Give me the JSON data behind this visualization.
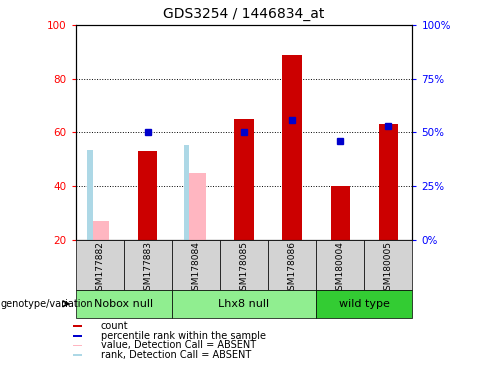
{
  "title": "GDS3254 / 1446834_at",
  "samples": [
    "GSM177882",
    "GSM177883",
    "GSM178084",
    "GSM178085",
    "GSM178086",
    "GSM180004",
    "GSM180005"
  ],
  "count": [
    null,
    53,
    null,
    65,
    89,
    40,
    63
  ],
  "percentile": [
    null,
    50,
    null,
    50,
    56,
    46,
    53
  ],
  "value_absent": [
    27,
    null,
    45,
    null,
    null,
    null,
    null
  ],
  "rank_absent": [
    42,
    null,
    44,
    null,
    null,
    null,
    null
  ],
  "ylim": [
    20,
    100
  ],
  "y2lim": [
    0,
    100
  ],
  "yticks": [
    20,
    40,
    60,
    80,
    100
  ],
  "y2ticks": [
    0,
    25,
    50,
    75,
    100
  ],
  "color_count": "#CC0000",
  "color_percentile": "#0000CC",
  "color_value_absent": "#FFB6C1",
  "color_rank_absent": "#ADD8E6",
  "bg_sample": "#D3D3D3",
  "group_configs": [
    {
      "indices": [
        0,
        1
      ],
      "label": "Nobox null",
      "color": "#90EE90"
    },
    {
      "indices": [
        2,
        3,
        4
      ],
      "label": "Lhx8 null",
      "color": "#90EE90"
    },
    {
      "indices": [
        5,
        6
      ],
      "label": "wild type",
      "color": "#33CC33"
    }
  ],
  "legend_items": [
    {
      "color": "#CC0000",
      "label": "count"
    },
    {
      "color": "#0000CC",
      "label": "percentile rank within the sample"
    },
    {
      "color": "#FFB6C1",
      "label": "value, Detection Call = ABSENT"
    },
    {
      "color": "#ADD8E6",
      "label": "rank, Detection Call = ABSENT"
    }
  ]
}
